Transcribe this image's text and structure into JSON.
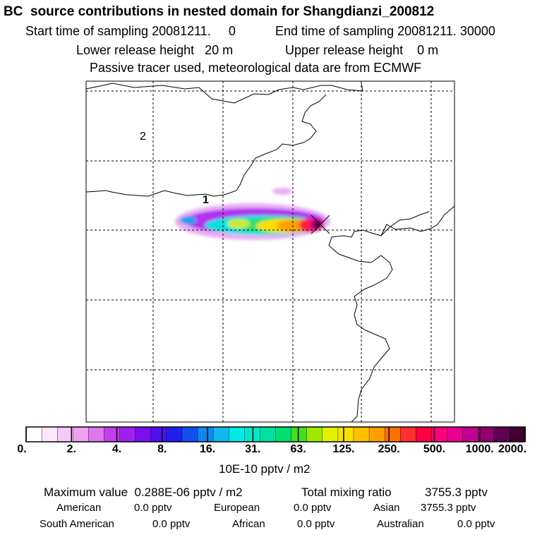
{
  "header": {
    "title": "BC  source contributions in nested domain for Shangdianzi_200812",
    "start": "Start time of sampling 20081211.     0",
    "end": "End time of sampling 20081211. 30000",
    "lower": "Lower release height   20 m",
    "upper": "Upper release height    0 m",
    "tracer": "Passive tracer used, meteorological data are from ECMWF"
  },
  "map": {
    "contour_labels": [
      "2",
      "1"
    ],
    "marker": "receptor-x"
  },
  "chart_data": {
    "type": "heatmap",
    "title": "BC  source contributions in nested domain for Shangdianzi_200812",
    "colorbar": {
      "tick_labels": [
        "0.",
        "2.",
        "4.",
        "8.",
        "16.",
        "31.",
        "63.",
        "125.",
        "250.",
        "500.",
        "1000.",
        "2000."
      ],
      "unit": "10E-10 pptv / m2",
      "colors": [
        "#ffffff",
        "#fde6fd",
        "#f8c8f8",
        "#f0a0f0",
        "#dd77ee",
        "#c040f0",
        "#a020f0",
        "#7a10ee",
        "#5010ee",
        "#2020ee",
        "#1050f0",
        "#1088f0",
        "#10b8f0",
        "#00e8e8",
        "#00e8c8",
        "#00e0a0",
        "#00e070",
        "#40e020",
        "#a0e800",
        "#e0f000",
        "#f8e000",
        "#ffc000",
        "#ffa000",
        "#ff7000",
        "#ff3030",
        "#ff0040",
        "#ff0080",
        "#e80090",
        "#c00090",
        "#900070",
        "#600050",
        "#400030"
      ]
    }
  },
  "stats": {
    "max_label": "Maximum value  0.288E-06 pptv / m2",
    "total_label": "Total mixing ratio",
    "total_value": "3755.3 pptv",
    "american_label": "American",
    "american_value": "0.0 pptv",
    "european_label": "European",
    "european_value": "0.0 pptv",
    "asian_label": "Asian",
    "asian_value": "3755.3 pptv",
    "samerican_label": "South American",
    "samerican_value": "0.0 pptv",
    "african_label": "African",
    "african_value": "0.0 pptv",
    "australian_label": "Australian",
    "australian_value": "0.0 pptv"
  }
}
